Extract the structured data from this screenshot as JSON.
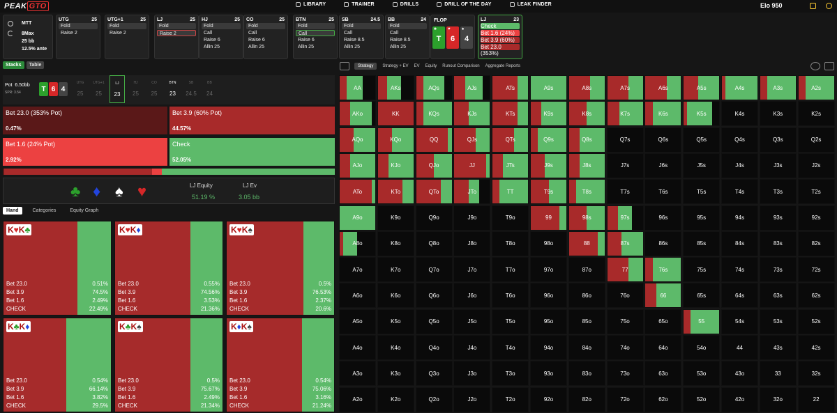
{
  "app": {
    "logo": "PEAK",
    "logo_box": "GTO"
  },
  "nav": [
    {
      "label": "LIBRARY",
      "icon": "library-icon"
    },
    {
      "label": "TRAINER",
      "icon": "trainer-icon"
    },
    {
      "label": "DRILLS",
      "icon": "drills-icon"
    },
    {
      "label": "DRILL OF THE DAY",
      "icon": "calendar-icon"
    },
    {
      "label": "LEAK FINDER",
      "icon": "leak-icon"
    }
  ],
  "elo": {
    "label": "Elo",
    "value": "950"
  },
  "settings": {
    "format": "MTT",
    "table": "8Max",
    "stack": "25 bb",
    "ante": "12.5% ante"
  },
  "seats": [
    {
      "name": "UTG",
      "stack": "25",
      "actions": [
        "Fold",
        "Raise 2"
      ],
      "hl": 0
    },
    {
      "name": "UTG+1",
      "stack": "25",
      "actions": [
        "Fold",
        "Raise 2"
      ],
      "hl": 0
    },
    {
      "name": "LJ",
      "stack": "25",
      "actions": [
        "Fold",
        "Raise 2"
      ],
      "hl": 1
    },
    {
      "name": "HJ",
      "stack": "25",
      "actions": [
        "Fold",
        "Call",
        "Raise 6",
        "Allin 25"
      ],
      "hl": 0
    },
    {
      "name": "CO",
      "stack": "25",
      "actions": [
        "Fold",
        "Call",
        "Raise 6",
        "Allin 25"
      ],
      "hl": 0
    },
    {
      "name": "BTN",
      "stack": "25",
      "actions": [
        "Fold",
        "Call",
        "Raise 6",
        "Allin 25"
      ],
      "hl": 1
    },
    {
      "name": "SB",
      "stack": "24.5",
      "actions": [
        "Fold",
        "Call",
        "Raise 8.5",
        "Allin 25"
      ],
      "hl": 0
    },
    {
      "name": "BB",
      "stack": "24",
      "actions": [
        "Fold",
        "Call",
        "Raise 8.5",
        "Allin 25"
      ],
      "hl": 0
    }
  ],
  "flop": {
    "label": "FLOP",
    "cards": [
      {
        "rank": "T",
        "suit": "♣",
        "color": "#2ca02c"
      },
      {
        "rank": "6",
        "suit": "♥",
        "color": "#d62728"
      },
      {
        "rank": "4",
        "suit": "♠",
        "color": "#444"
      }
    ]
  },
  "lj_panel": {
    "name": "LJ",
    "stack": "23",
    "actions": [
      "Check",
      "Bet 1.6 (24%)",
      "Bet 3.9 (60%)",
      "Bet 23.0 (353%)"
    ]
  },
  "left_tabs": [
    "Stacks",
    "Table"
  ],
  "pot": {
    "label": "Pot",
    "value": "6.50bb",
    "spr": "SPR: 3.54"
  },
  "positions": [
    {
      "n": "UTG",
      "s": "25"
    },
    {
      "n": "UTG+1",
      "s": "25"
    },
    {
      "n": "LJ",
      "s": "23"
    },
    {
      "n": "HJ",
      "s": "25"
    },
    {
      "n": "CO",
      "s": "25"
    },
    {
      "n": "BTN",
      "s": "23"
    },
    {
      "n": "SB",
      "s": "24.5"
    },
    {
      "n": "BB",
      "s": "24"
    }
  ],
  "actions": [
    {
      "label": "Bet 23.0 (353% Pot)",
      "pct": "0.47%",
      "color": "#5a1818"
    },
    {
      "label": "Bet 3.9 (60% Pot)",
      "pct": "44.57%",
      "color": "#a82a2a"
    },
    {
      "label": "Bet 1.6 (24% Pot)",
      "pct": "2.92%",
      "color": "#ec4141"
    },
    {
      "label": "Check",
      "pct": "52.05%",
      "color": "#5dba6a"
    }
  ],
  "aggregate": [
    0.47,
    44.57,
    2.92,
    52.05
  ],
  "equity": {
    "eq_label": "LJ Equity",
    "eq_value": "51.19 %",
    "ev_label": "LJ Ev",
    "ev_value": "3.05 bb",
    "suits": [
      "♣",
      "♦",
      "♠",
      "♥"
    ]
  },
  "hand_tabs": [
    "Hand",
    "Categories",
    "Equity Graph"
  ],
  "combos": [
    {
      "cards": [
        {
          "r": "K",
          "s": "♥"
        },
        {
          "r": "K",
          "s": "♣"
        }
      ],
      "rows": [
        [
          "Bet 23.0",
          "0.51%"
        ],
        [
          "Bet 3.9",
          "74.5%"
        ],
        [
          "Bet 1.6",
          "2.49%"
        ],
        [
          "CHECK",
          "22.49%"
        ]
      ],
      "check": 22.49
    },
    {
      "cards": [
        {
          "r": "K",
          "s": "♥"
        },
        {
          "r": "K",
          "s": "♦"
        }
      ],
      "rows": [
        [
          "Bet 23.0",
          "0.55%"
        ],
        [
          "Bet 3.9",
          "74.56%"
        ],
        [
          "Bet 1.6",
          "3.53%"
        ],
        [
          "CHECK",
          "21.36%"
        ]
      ],
      "check": 21.36
    },
    {
      "cards": [
        {
          "r": "K",
          "s": "♥"
        },
        {
          "r": "K",
          "s": "♠"
        }
      ],
      "rows": [
        [
          "Bet 23.0",
          "0.5%"
        ],
        [
          "Bet 3.9",
          "76.53%"
        ],
        [
          "Bet 1.6",
          "2.37%"
        ],
        [
          "CHECK",
          "20.6%"
        ]
      ],
      "check": 20.6
    },
    {
      "cards": [
        {
          "r": "K",
          "s": "♣"
        },
        {
          "r": "K",
          "s": "♦"
        }
      ],
      "rows": [
        [
          "Bet 23.0",
          "0.54%"
        ],
        [
          "Bet 3.9",
          "66.14%"
        ],
        [
          "Bet 1.6",
          "3.82%"
        ],
        [
          "CHECK",
          "29.5%"
        ]
      ],
      "check": 29.5
    },
    {
      "cards": [
        {
          "r": "K",
          "s": "♣"
        },
        {
          "r": "K",
          "s": "♠"
        }
      ],
      "rows": [
        [
          "Bet 23.0",
          "0.5%"
        ],
        [
          "Bet 3.9",
          "75.67%"
        ],
        [
          "Bet 1.6",
          "2.49%"
        ],
        [
          "CHECK",
          "21.34%"
        ]
      ],
      "check": 21.34
    },
    {
      "cards": [
        {
          "r": "K",
          "s": "♦"
        },
        {
          "r": "K",
          "s": "♠"
        }
      ],
      "rows": [
        [
          "Bet 23.0",
          "0.54%"
        ],
        [
          "Bet 3.9",
          "75.06%"
        ],
        [
          "Bet 1.6",
          "3.16%"
        ],
        [
          "CHECK",
          "21.24%"
        ]
      ],
      "check": 21.24
    }
  ],
  "right_tabs": [
    "Strategy",
    "Strategy + EV",
    "EV",
    "Equity",
    "Runout Comparison",
    "Aggregate Reports"
  ],
  "ranks": [
    "A",
    "K",
    "Q",
    "J",
    "T",
    "9",
    "8",
    "7",
    "6",
    "5",
    "4",
    "3",
    "2"
  ],
  "grid_fill": {
    "AA": [
      0.2,
      0.45
    ],
    "AKs": [
      0.25,
      0.4
    ],
    "AQs": [
      0.2,
      0.6
    ],
    "AJs": [
      0.3,
      0.5
    ],
    "ATs": [
      0.7,
      0.3
    ],
    "A9s": [
      0.0,
      1.0
    ],
    "A8s": [
      0.6,
      0.4
    ],
    "A7s": [
      0.6,
      0.4
    ],
    "A6s": [
      0.6,
      0.4
    ],
    "A5s": [
      0.4,
      0.6
    ],
    "A4s": [
      0.1,
      0.9
    ],
    "A3s": [
      0.2,
      0.8
    ],
    "A2s": [
      0.2,
      0.8
    ],
    "AKo": [
      0.3,
      0.6
    ],
    "KK": [
      1.0,
      0.0
    ],
    "KQs": [
      0.2,
      0.8
    ],
    "KJs": [
      0.4,
      0.6
    ],
    "KTs": [
      0.7,
      0.3
    ],
    "K9s": [
      0.3,
      0.7
    ],
    "K8s": [
      0.5,
      0.5
    ],
    "K7s": [
      0.35,
      0.65
    ],
    "K6s": [
      0.2,
      0.8
    ],
    "K5s": [
      0.1,
      0.7
    ],
    "AQo": [
      0.4,
      0.6
    ],
    "KQo": [
      0.4,
      0.6
    ],
    "QQ": [
      0.9,
      0.1
    ],
    "QJs": [
      0.6,
      0.4
    ],
    "QTs": [
      0.6,
      0.4
    ],
    "Q9s": [
      0.2,
      0.8
    ],
    "Q8s": [
      0.3,
      0.7
    ],
    "AJo": [
      0.3,
      0.7
    ],
    "KJo": [
      0.3,
      0.7
    ],
    "QJo": [
      0.5,
      0.5
    ],
    "JJ": [
      0.9,
      0.1
    ],
    "JTs": [
      0.3,
      0.7
    ],
    "J9s": [
      0.4,
      0.6
    ],
    "J8s": [
      0.3,
      0.7
    ],
    "ATo": [
      0.9,
      0.1
    ],
    "KTo": [
      0.7,
      0.3
    ],
    "QTo": [
      0.7,
      0.3
    ],
    "JTo": [
      0.4,
      0.3
    ],
    "TT": [
      0.2,
      0.8
    ],
    "T9s": [
      0.5,
      0.5
    ],
    "T8s": [
      0.2,
      0.8
    ],
    "A9o": [
      0.0,
      1.0
    ],
    "99": [
      0.8,
      0.2
    ],
    "98s": [
      0.5,
      0.5
    ],
    "97s": [
      0.3,
      0.4
    ],
    "A8o": [
      0.1,
      0.4
    ],
    "88": [
      0.8,
      0.2
    ],
    "87s": [
      0.4,
      0.6
    ],
    "77": [
      0.6,
      0.4
    ],
    "76s": [
      0.2,
      0.8
    ],
    "66": [
      0.3,
      0.7
    ],
    "55": [
      0.2,
      0.8
    ]
  },
  "colors": {
    "bet_big": "#5a1818",
    "bet_mid": "#a82a2a",
    "bet_small": "#ec4141",
    "check": "#5dba6a"
  }
}
